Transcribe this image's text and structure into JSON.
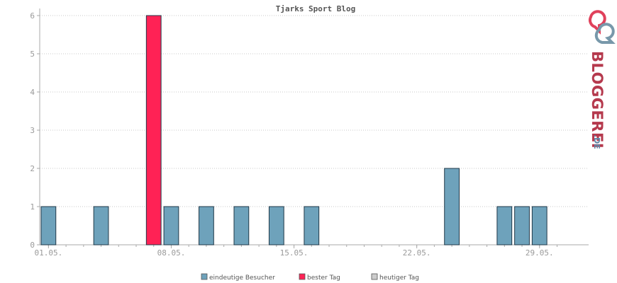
{
  "chart_data": {
    "type": "bar",
    "title": "Tjarks Sport Blog",
    "xlabel": "",
    "ylabel": "",
    "ylim": [
      0,
      6
    ],
    "y_ticks": [
      0,
      1,
      2,
      3,
      4,
      5,
      6
    ],
    "days": [
      1,
      2,
      3,
      4,
      5,
      6,
      7,
      8,
      9,
      10,
      11,
      12,
      13,
      14,
      15,
      16,
      17,
      18,
      19,
      20,
      21,
      22,
      23,
      24,
      25,
      26,
      27,
      28,
      29,
      30
    ],
    "x_tick_labels": [
      {
        "day": 1,
        "label": "01.05."
      },
      {
        "day": 8,
        "label": "08.05."
      },
      {
        "day": 15,
        "label": "15.05."
      },
      {
        "day": 22,
        "label": "22.05."
      },
      {
        "day": 29,
        "label": "29.05."
      }
    ],
    "series": [
      {
        "name": "eindeutige Besucher",
        "color": "#6ea2bb",
        "values": [
          1,
          0,
          0,
          1,
          0,
          0,
          0,
          1,
          0,
          1,
          0,
          1,
          0,
          1,
          0,
          1,
          0,
          0,
          0,
          0,
          0,
          0,
          0,
          2,
          0,
          0,
          1,
          1,
          1,
          0
        ]
      },
      {
        "name": "bester Tag",
        "color": "#ff2255",
        "values": [
          0,
          0,
          0,
          0,
          0,
          0,
          6,
          0,
          0,
          0,
          0,
          0,
          0,
          0,
          0,
          0,
          0,
          0,
          0,
          0,
          0,
          0,
          0,
          0,
          0,
          0,
          0,
          0,
          0,
          0
        ]
      },
      {
        "name": "heutiger Tag",
        "color": "#cccccc",
        "values": [
          0,
          0,
          0,
          0,
          0,
          0,
          0,
          0,
          0,
          0,
          0,
          0,
          0,
          0,
          0,
          0,
          0,
          0,
          0,
          0,
          0,
          0,
          0,
          0,
          0,
          0,
          0,
          0,
          0,
          0
        ]
      }
    ],
    "grid": true,
    "legend_position": "bottom"
  },
  "brand": {
    "name_main": "BLOGGEREI",
    "name_suffix": ".DE"
  }
}
